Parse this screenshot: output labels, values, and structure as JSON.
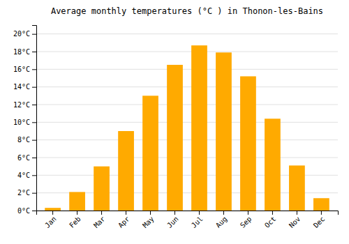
{
  "chart_data": {
    "type": "bar",
    "title": "Average monthly temperatures (°C ) in Thonon-les-Bains",
    "categories": [
      "Jan",
      "Feb",
      "Mar",
      "Apr",
      "May",
      "Jun",
      "Jul",
      "Aug",
      "Sep",
      "Oct",
      "Nov",
      "Dec"
    ],
    "values": [
      0.3,
      2.1,
      5.0,
      9.0,
      13.0,
      16.5,
      18.7,
      17.9,
      15.2,
      10.4,
      5.1,
      1.4
    ],
    "color": "#FFAA00",
    "ylim": [
      0,
      21
    ],
    "yticks": [
      {
        "value": 0,
        "label": "0°C"
      },
      {
        "value": 2,
        "label": "2°C"
      },
      {
        "value": 4,
        "label": "4°C"
      },
      {
        "value": 6,
        "label": "6°C"
      },
      {
        "value": 8,
        "label": "8°C"
      },
      {
        "value": 10,
        "label": "10°C"
      },
      {
        "value": 12,
        "label": "12°C"
      },
      {
        "value": 14,
        "label": "14°C"
      },
      {
        "value": 16,
        "label": "16°C"
      },
      {
        "value": 18,
        "label": "18°C"
      },
      {
        "value": 20,
        "label": "20°C"
      }
    ],
    "grid": true
  }
}
